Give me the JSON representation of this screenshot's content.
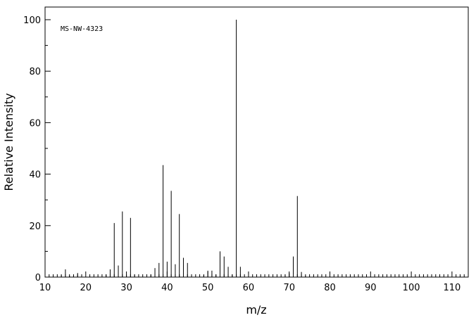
{
  "chart_data": {
    "type": "bar",
    "title": "",
    "annotation": "MS-NW-4323",
    "xlabel": "m/z",
    "ylabel": "Relative Intensity",
    "xlim": [
      10,
      114
    ],
    "ylim": [
      0,
      100
    ],
    "xticks": [
      10,
      20,
      30,
      40,
      50,
      60,
      70,
      80,
      90,
      100,
      110
    ],
    "yticks": [
      0,
      20,
      40,
      60,
      80,
      100
    ],
    "grid": false,
    "peaks": [
      {
        "mz": 14,
        "intensity": 0.8
      },
      {
        "mz": 15,
        "intensity": 3.0
      },
      {
        "mz": 16,
        "intensity": 0.6
      },
      {
        "mz": 17,
        "intensity": 0.7
      },
      {
        "mz": 18,
        "intensity": 1.6
      },
      {
        "mz": 19,
        "intensity": 0.5
      },
      {
        "mz": 25,
        "intensity": 1.0
      },
      {
        "mz": 26,
        "intensity": 3.0
      },
      {
        "mz": 27,
        "intensity": 21.0
      },
      {
        "mz": 28,
        "intensity": 4.5
      },
      {
        "mz": 29,
        "intensity": 25.5
      },
      {
        "mz": 30,
        "intensity": 1.0
      },
      {
        "mz": 31,
        "intensity": 23.0
      },
      {
        "mz": 32,
        "intensity": 1.0
      },
      {
        "mz": 36,
        "intensity": 1.0
      },
      {
        "mz": 37,
        "intensity": 3.5
      },
      {
        "mz": 38,
        "intensity": 5.5
      },
      {
        "mz": 39,
        "intensity": 43.5
      },
      {
        "mz": 40,
        "intensity": 6.0
      },
      {
        "mz": 41,
        "intensity": 33.5
      },
      {
        "mz": 42,
        "intensity": 5.0
      },
      {
        "mz": 43,
        "intensity": 24.5
      },
      {
        "mz": 44,
        "intensity": 7.5
      },
      {
        "mz": 45,
        "intensity": 5.5
      },
      {
        "mz": 49,
        "intensity": 0.8
      },
      {
        "mz": 50,
        "intensity": 2.5
      },
      {
        "mz": 51,
        "intensity": 2.5
      },
      {
        "mz": 52,
        "intensity": 1.0
      },
      {
        "mz": 53,
        "intensity": 10.0
      },
      {
        "mz": 54,
        "intensity": 8.0
      },
      {
        "mz": 55,
        "intensity": 4.0
      },
      {
        "mz": 56,
        "intensity": 1.0
      },
      {
        "mz": 57,
        "intensity": 100.0
      },
      {
        "mz": 58,
        "intensity": 4.0
      },
      {
        "mz": 69,
        "intensity": 1.0
      },
      {
        "mz": 70,
        "intensity": 1.5
      },
      {
        "mz": 71,
        "intensity": 8.0
      },
      {
        "mz": 72,
        "intensity": 31.5
      },
      {
        "mz": 73,
        "intensity": 2.0
      },
      {
        "mz": 74,
        "intensity": 0.5
      }
    ]
  }
}
